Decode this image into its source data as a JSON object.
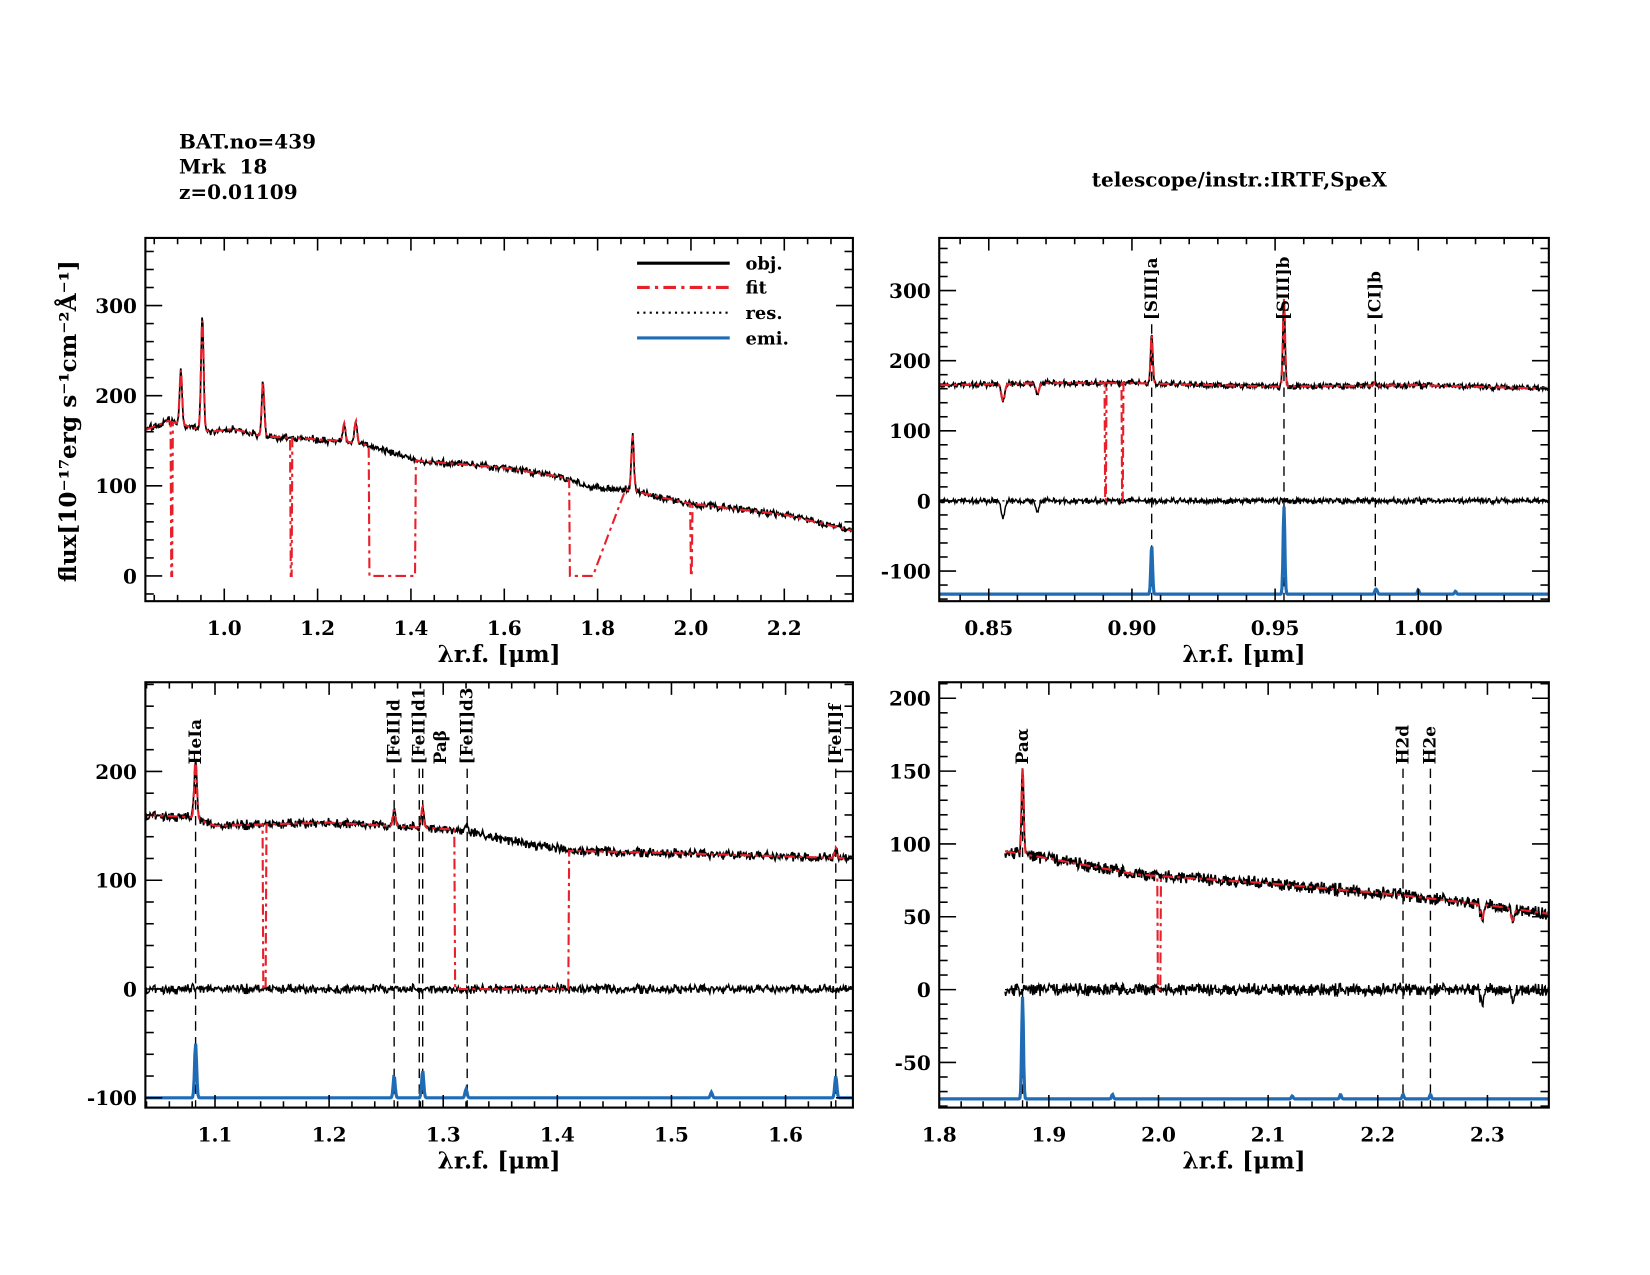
{
  "header": {
    "bat_no": "BAT.no=439",
    "object": "Mrk  18",
    "redshift": "z=0.01109",
    "instrument": "telescope/instr.:IRTF,SpeX"
  },
  "legend": {
    "obj": "obj.",
    "fit": "fit",
    "res": "res.",
    "emi": "emi."
  },
  "colors": {
    "obj": "#000000",
    "fit": "#e8202a",
    "res": "#000000",
    "emi": "#1f6cb5"
  },
  "chart_data": [
    {
      "type": "line",
      "panel": "full spectrum",
      "xlabel": "λr.f. [μm]",
      "ylabel": "flux[10⁻¹⁷erg s⁻¹cm⁻²Å⁻¹]",
      "xlim": [
        0.831,
        2.347
      ],
      "ylim": [
        -28,
        375
      ],
      "xticks": [
        "1.0",
        "1.2",
        "1.4",
        "1.6",
        "1.8",
        "2.0",
        "2.2"
      ],
      "xstep_minor": 0.05,
      "yticks": [
        "0",
        "100",
        "200",
        "300"
      ],
      "ystep_minor": 20,
      "data_range": [
        0.831,
        2.347
      ],
      "continuum": [
        [
          0.831,
          162
        ],
        [
          0.88,
          172
        ],
        [
          0.93,
          165
        ],
        [
          0.97,
          160
        ],
        [
          1.02,
          163
        ],
        [
          1.08,
          155
        ],
        [
          1.15,
          153
        ],
        [
          1.25,
          150
        ],
        [
          1.31,
          145
        ],
        [
          1.34,
          140
        ],
        [
          1.41,
          128
        ],
        [
          1.6,
          120
        ],
        [
          1.72,
          110
        ],
        [
          1.78,
          98
        ],
        [
          1.86,
          96
        ],
        [
          2.0,
          80
        ],
        [
          2.2,
          68
        ],
        [
          2.347,
          50
        ]
      ],
      "lines": [
        [
          0.907,
          60
        ],
        [
          0.953,
          125
        ],
        [
          1.083,
          60
        ],
        [
          1.257,
          20
        ],
        [
          1.282,
          25
        ],
        [
          1.875,
          62
        ]
      ],
      "fit_zero": [
        [
          0.885,
          0.889
        ],
        [
          1.141,
          1.145
        ],
        [
          1.31,
          1.41
        ],
        [
          1.74,
          1.79
        ],
        [
          1.999,
          2.003
        ]
      ],
      "fit_ramp": [
        1.79,
        1.86
      ],
      "show_residual": false,
      "show_emi": false,
      "legend": "top-right",
      "markers": []
    },
    {
      "type": "line",
      "panel": "0.83-1.05 µm",
      "xlabel": "λr.f. [μm]",
      "xlim": [
        0.8327,
        1.0456
      ],
      "ylim": [
        -143,
        375
      ],
      "xticks": [
        "0.85",
        "0.90",
        "0.95",
        "1.00"
      ],
      "xstep_minor": 0.01,
      "yticks": [
        "-100",
        "0",
        "100",
        "200",
        "300"
      ],
      "ystep_minor": 20,
      "data_range": [
        0.8327,
        1.0456
      ],
      "continuum": [
        [
          0.8327,
          165
        ],
        [
          0.87,
          168
        ],
        [
          0.9,
          168
        ],
        [
          0.95,
          163
        ],
        [
          1.0,
          165
        ],
        [
          1.0456,
          160
        ]
      ],
      "absorptions": [
        [
          0.855,
          -25
        ],
        [
          0.867,
          -15
        ]
      ],
      "lines": [
        [
          0.9069,
          70
        ],
        [
          0.9531,
          125
        ],
        [
          0.985,
          5
        ]
      ],
      "emi_lines": [
        [
          0.9069,
          70
        ],
        [
          0.9531,
          125
        ],
        [
          0.985,
          5
        ],
        [
          0.9855,
          5
        ],
        [
          1.0,
          6
        ],
        [
          1.013,
          4
        ]
      ],
      "emi_base": -133,
      "fit_zero": [
        [
          0.8905,
          0.891
        ],
        [
          0.8965,
          0.897
        ]
      ],
      "show_residual": true,
      "show_emi": true,
      "markers": [
        {
          "x": 0.9069,
          "label": "[SIII]a"
        },
        {
          "x": 0.9531,
          "label": "[SIII]b"
        },
        {
          "x": 0.985,
          "label": "[CI]b"
        }
      ]
    },
    {
      "type": "line",
      "panel": "1.04-1.66 µm",
      "xlabel": "λr.f. [μm]",
      "xlim": [
        1.039,
        1.659
      ],
      "ylim": [
        -109,
        282
      ],
      "xticks": [
        "1.1",
        "1.2",
        "1.3",
        "1.4",
        "1.5",
        "1.6"
      ],
      "xstep_minor": 0.02,
      "yticks": [
        "-100",
        "0",
        "100",
        "200"
      ],
      "ystep_minor": 20,
      "data_range": [
        1.039,
        1.659
      ],
      "continuum": [
        [
          1.039,
          160
        ],
        [
          1.08,
          158
        ],
        [
          1.1,
          150
        ],
        [
          1.2,
          153
        ],
        [
          1.32,
          146
        ],
        [
          1.34,
          140
        ],
        [
          1.41,
          127
        ],
        [
          1.5,
          125
        ],
        [
          1.659,
          120
        ]
      ],
      "lines": [
        [
          1.083,
          55
        ],
        [
          1.257,
          15
        ],
        [
          1.282,
          20
        ],
        [
          1.32,
          6
        ],
        [
          1.644,
          10
        ]
      ],
      "emi_lines": [
        [
          1.083,
          50
        ],
        [
          1.257,
          20
        ],
        [
          1.282,
          25
        ],
        [
          1.32,
          8
        ],
        [
          1.535,
          5
        ],
        [
          1.644,
          20
        ]
      ],
      "emi_base": -100,
      "fit_zero": [
        [
          1.142,
          1.145
        ],
        [
          1.31,
          1.41
        ]
      ],
      "show_residual": true,
      "show_emi": true,
      "markers": [
        {
          "x": 1.083,
          "label": "HeIa"
        },
        {
          "x": 1.257,
          "label": "[FeII]d"
        },
        {
          "x": 1.279,
          "label": "[FeII]d1"
        },
        {
          "x": 1.282,
          "label": "Paβ"
        },
        {
          "x": 1.321,
          "label": "[FeII]d3"
        },
        {
          "x": 1.644,
          "label": "[FeII]f"
        }
      ]
    },
    {
      "type": "line",
      "panel": "1.8-2.35 µm",
      "xlabel": "λr.f. [μm]",
      "xlim": [
        1.8,
        2.356
      ],
      "ylim": [
        -81,
        211
      ],
      "xticks": [
        "1.8",
        "1.9",
        "2.0",
        "2.1",
        "2.2",
        "2.3"
      ],
      "xstep_minor": 0.02,
      "yticks": [
        "-50",
        "0",
        "50",
        "100",
        "150",
        "200"
      ],
      "ystep_minor": 10,
      "data_range": [
        1.86,
        2.356
      ],
      "continuum": [
        [
          1.86,
          95
        ],
        [
          1.9,
          90
        ],
        [
          1.98,
          79
        ],
        [
          2.0,
          78
        ],
        [
          2.1,
          73
        ],
        [
          2.22,
          65
        ],
        [
          2.3,
          58
        ],
        [
          2.356,
          52
        ]
      ],
      "absorptions": [
        [
          2.295,
          -10
        ],
        [
          2.323,
          -8
        ]
      ],
      "lines": [
        [
          1.876,
          60
        ]
      ],
      "emi_lines": [
        [
          1.876,
          70
        ],
        [
          1.958,
          3
        ],
        [
          2.122,
          2
        ],
        [
          2.166,
          3
        ],
        [
          2.223,
          3
        ],
        [
          2.248,
          3
        ]
      ],
      "emi_base": -75,
      "fit_zero": [
        [
          1.999,
          2.002
        ]
      ],
      "show_residual": true,
      "show_emi": true,
      "markers": [
        {
          "x": 1.876,
          "label": "Paα"
        },
        {
          "x": 2.223,
          "label": "H2d"
        },
        {
          "x": 2.248,
          "label": "H2e"
        }
      ]
    }
  ]
}
